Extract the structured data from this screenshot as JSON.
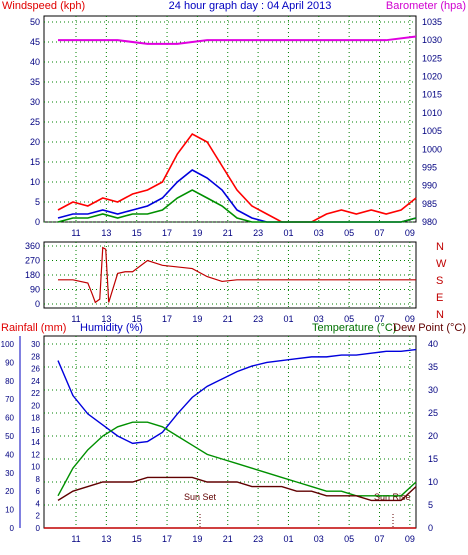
{
  "header": {
    "left_label": "Windspeed (kph)",
    "title": "24 hour graph day : 04 April 2013",
    "right_label": "Barometer (hpa)"
  },
  "colors": {
    "axis_text": "#0000c0",
    "tick_text": "#000080",
    "wind_label": "#e00000",
    "baro_label": "#d000d0",
    "temp_label": "#007000",
    "grid": "#008000",
    "series_red": "#ff0000",
    "series_blue": "#0000dd",
    "series_green": "#009000",
    "series_magenta": "#e000e0",
    "series_darkred": "#600000",
    "panel_bg": "#ffffff"
  },
  "chart_data": [
    {
      "type": "line",
      "title": "24 hour graph day : 04 April 2013",
      "x_ticks": [
        "11",
        "13",
        "15",
        "17",
        "19",
        "21",
        "23",
        "01",
        "03",
        "05",
        "07",
        "09"
      ],
      "left_axis": {
        "label": "Windspeed (kph)",
        "ticks": [
          0,
          5,
          10,
          15,
          20,
          25,
          30,
          35,
          40,
          45,
          50
        ],
        "ylim": [
          0,
          50
        ]
      },
      "right_axis": {
        "label": "Barometer (hpa)",
        "ticks": [
          980,
          985,
          990,
          995,
          1000,
          1005,
          1010,
          1015,
          1020,
          1025,
          1030,
          1035
        ],
        "ylim": [
          980,
          1035
        ]
      },
      "grid": true,
      "series": [
        {
          "color": "#e000e0",
          "axis": "right",
          "x": [
            0,
            2,
            4,
            6,
            8,
            10,
            12,
            14,
            16,
            18,
            20,
            22,
            24
          ],
          "values": [
            1030,
            1030,
            1030,
            1029,
            1029,
            1030,
            1030,
            1030,
            1030,
            1030,
            1030,
            1030,
            1031
          ]
        },
        {
          "color": "#ff0000",
          "axis": "left",
          "x": [
            0,
            1,
            2,
            3,
            4,
            5,
            6,
            7,
            8,
            9,
            10,
            11,
            12,
            13,
            14,
            15,
            16,
            17,
            18,
            19,
            20,
            21,
            22,
            23,
            24
          ],
          "values": [
            3,
            5,
            4,
            6,
            5,
            7,
            8,
            10,
            17,
            22,
            20,
            14,
            8,
            4,
            2,
            0,
            0,
            0,
            2,
            3,
            2,
            3,
            2,
            3,
            6
          ]
        },
        {
          "color": "#0000dd",
          "axis": "left",
          "x": [
            0,
            1,
            2,
            3,
            4,
            5,
            6,
            7,
            8,
            9,
            10,
            11,
            12,
            13,
            14,
            15,
            16,
            17,
            18,
            19,
            20,
            21,
            22,
            23,
            24
          ],
          "values": [
            1,
            2,
            2,
            3,
            2,
            3,
            4,
            6,
            10,
            13,
            11,
            8,
            3,
            1,
            0,
            0,
            0,
            0,
            0,
            0,
            0,
            0,
            0,
            0,
            1
          ]
        },
        {
          "color": "#009000",
          "axis": "left",
          "x": [
            0,
            1,
            2,
            3,
            4,
            5,
            6,
            7,
            8,
            9,
            10,
            11,
            12,
            13,
            14,
            15,
            16,
            17,
            18,
            19,
            20,
            21,
            22,
            23,
            24
          ],
          "values": [
            0,
            1,
            1,
            2,
            1,
            2,
            2,
            3,
            6,
            8,
            6,
            4,
            1,
            0,
            0,
            0,
            0,
            0,
            0,
            0,
            0,
            0,
            0,
            0,
            1
          ]
        }
      ]
    },
    {
      "type": "line",
      "x_ticks": [
        "11",
        "13",
        "15",
        "17",
        "19",
        "21",
        "23",
        "01",
        "03",
        "05",
        "07",
        "09"
      ],
      "left_axis": {
        "ticks": [
          0,
          90,
          180,
          270,
          360
        ],
        "ylim": [
          0,
          360
        ]
      },
      "right_axis": {
        "ticks": [
          "N",
          "W",
          "S",
          "E",
          "N"
        ]
      },
      "grid": true,
      "series": [
        {
          "color": "#c00000",
          "x": [
            0,
            1,
            2,
            2.3,
            2.5,
            2.8,
            3.0,
            3.2,
            3.4,
            4,
            4.5,
            5,
            6,
            7,
            8,
            9,
            10,
            11,
            12,
            13,
            14,
            16,
            18,
            20,
            22,
            24
          ],
          "values": [
            150,
            150,
            130,
            60,
            10,
            30,
            350,
            340,
            10,
            190,
            200,
            200,
            270,
            240,
            230,
            220,
            170,
            140,
            150,
            150,
            150,
            150,
            150,
            150,
            150,
            150
          ]
        }
      ]
    },
    {
      "type": "line",
      "x_ticks": [
        "11",
        "13",
        "15",
        "17",
        "19",
        "21",
        "23",
        "01",
        "03",
        "05",
        "07",
        "09"
      ],
      "left_label_1": "Rainfall (mm)",
      "left_label_2": "Humidity (%)",
      "right_label_1": "Temperature (°C)",
      "right_label_2": "Dew Point (°C)",
      "humidity_axis": {
        "ticks": [
          0,
          10,
          20,
          30,
          40,
          50,
          60,
          70,
          80,
          90,
          100
        ],
        "ylim": [
          0,
          100
        ]
      },
      "rain_axis": {
        "ticks": [
          0,
          2,
          4,
          6,
          8,
          10,
          12,
          14,
          16,
          18,
          20,
          22,
          24,
          26,
          28,
          30
        ],
        "ylim": [
          0,
          30
        ]
      },
      "temp_axis": {
        "ticks": [
          0,
          5,
          10,
          15,
          20,
          25,
          30,
          35,
          40
        ],
        "ylim": [
          0,
          40
        ]
      },
      "annotations": [
        "Sun Set",
        "Sun Rise"
      ],
      "grid": true,
      "series": [
        {
          "color": "#0000dd",
          "axis": "humidity",
          "x": [
            0,
            1,
            2,
            3,
            4,
            5,
            6,
            7,
            8,
            9,
            10,
            11,
            12,
            13,
            14,
            15,
            16,
            17,
            18,
            19,
            20,
            21,
            22,
            23,
            24
          ],
          "values": [
            91,
            72,
            62,
            56,
            50,
            46,
            47,
            52,
            62,
            71,
            77,
            81,
            85,
            88,
            90,
            91,
            92,
            93,
            93,
            94,
            94,
            95,
            96,
            96,
            97
          ]
        },
        {
          "color": "#009000",
          "axis": "temp",
          "x": [
            0,
            1,
            2,
            3,
            4,
            5,
            6,
            7,
            8,
            9,
            10,
            11,
            12,
            13,
            14,
            15,
            16,
            17,
            18,
            19,
            20,
            21,
            22,
            23,
            24
          ],
          "values": [
            7,
            13,
            17,
            20,
            22,
            23,
            23,
            22,
            20,
            18,
            16,
            15,
            14,
            13,
            12,
            11,
            10,
            9,
            8,
            8,
            7,
            7,
            7,
            7,
            10
          ]
        },
        {
          "color": "#600000",
          "axis": "temp",
          "x": [
            0,
            1,
            2,
            3,
            4,
            5,
            6,
            7,
            8,
            9,
            10,
            11,
            12,
            13,
            14,
            15,
            16,
            17,
            18,
            19,
            20,
            21,
            22,
            23,
            24
          ],
          "values": [
            6,
            8,
            9,
            10,
            10,
            10,
            11,
            11,
            11,
            11,
            10,
            10,
            10,
            9,
            9,
            9,
            8,
            8,
            7,
            7,
            7,
            6,
            6,
            6,
            9
          ]
        },
        {
          "color": "#c00000",
          "axis": "rain",
          "x": [
            0,
            24
          ],
          "values": [
            0,
            0
          ]
        }
      ]
    }
  ]
}
